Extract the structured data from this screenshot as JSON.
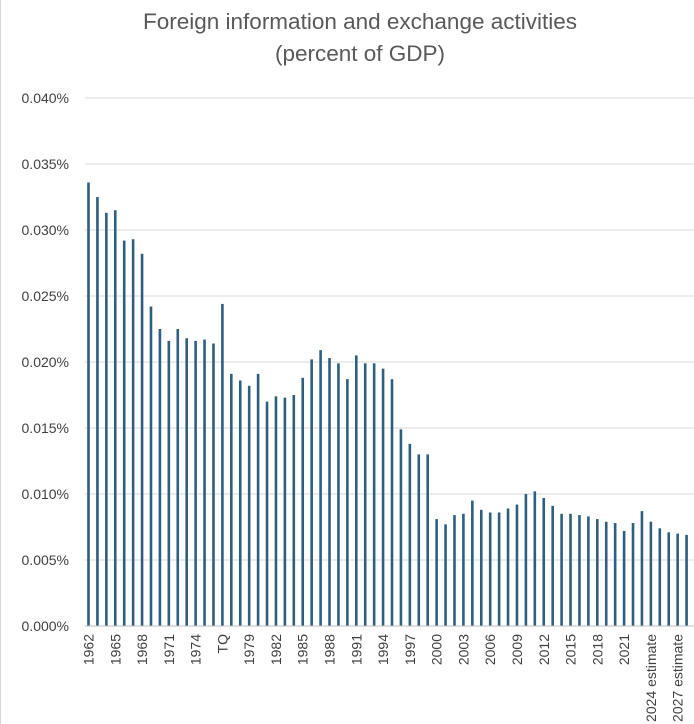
{
  "chart_data": {
    "type": "bar",
    "title_line1": "Foreign information and exchange activities",
    "title_line2": "(percent of GDP)",
    "xlabel": "",
    "ylabel": "",
    "ylim": [
      0,
      0.04
    ],
    "y_ticks": [
      "0.000%",
      "0.005%",
      "0.010%",
      "0.015%",
      "0.020%",
      "0.025%",
      "0.030%",
      "0.035%",
      "0.040%"
    ],
    "grid": true,
    "color": "#2e5f7f",
    "categories": [
      "1962",
      "1963",
      "1964",
      "1965",
      "1966",
      "1967",
      "1968",
      "1969",
      "1970",
      "1971",
      "1972",
      "1973",
      "1974",
      "1975",
      "1976",
      "TQ",
      "1977",
      "1978",
      "1979",
      "1980",
      "1981",
      "1982",
      "1983",
      "1984",
      "1985",
      "1986",
      "1987",
      "1988",
      "1989",
      "1990",
      "1991",
      "1992",
      "1993",
      "1994",
      "1995",
      "1996",
      "1997",
      "1998",
      "1999",
      "2000",
      "2001",
      "2002",
      "2003",
      "2004",
      "2005",
      "2006",
      "2007",
      "2008",
      "2009",
      "2010",
      "2011",
      "2012",
      "2013",
      "2014",
      "2015",
      "2016",
      "2017",
      "2018",
      "2019",
      "2020",
      "2021",
      "2022",
      "2023",
      "2024 estimate",
      "2025 estimate",
      "2026 estimate",
      "2027 estimate",
      "2028 estimate"
    ],
    "shown_labels": [
      "1962",
      "1965",
      "1968",
      "1971",
      "1974",
      "TQ",
      "1979",
      "1982",
      "1985",
      "1988",
      "1991",
      "1994",
      "1997",
      "2000",
      "2003",
      "2006",
      "2009",
      "2012",
      "2015",
      "2018",
      "2021",
      "2024 estimate",
      "2027 estimate"
    ],
    "values": [
      0.0336,
      0.0325,
      0.0313,
      0.0315,
      0.0292,
      0.0293,
      0.0282,
      0.0242,
      0.0225,
      0.0216,
      0.0225,
      0.0218,
      0.0216,
      0.0217,
      0.0214,
      0.0244,
      0.0191,
      0.0186,
      0.0182,
      0.0191,
      0.017,
      0.0174,
      0.0173,
      0.0175,
      0.0188,
      0.0202,
      0.0209,
      0.0203,
      0.0199,
      0.0187,
      0.0205,
      0.0199,
      0.0199,
      0.0195,
      0.0187,
      0.0149,
      0.0138,
      0.013,
      0.013,
      0.0081,
      0.0077,
      0.0084,
      0.0085,
      0.0095,
      0.0088,
      0.0086,
      0.0086,
      0.0089,
      0.0092,
      0.01,
      0.0102,
      0.0097,
      0.0091,
      0.0085,
      0.0085,
      0.0084,
      0.0083,
      0.0081,
      0.0079,
      0.0078,
      0.0072,
      0.0078,
      0.0087,
      0.0079,
      0.0074,
      0.0071,
      0.007,
      0.0069
    ]
  }
}
